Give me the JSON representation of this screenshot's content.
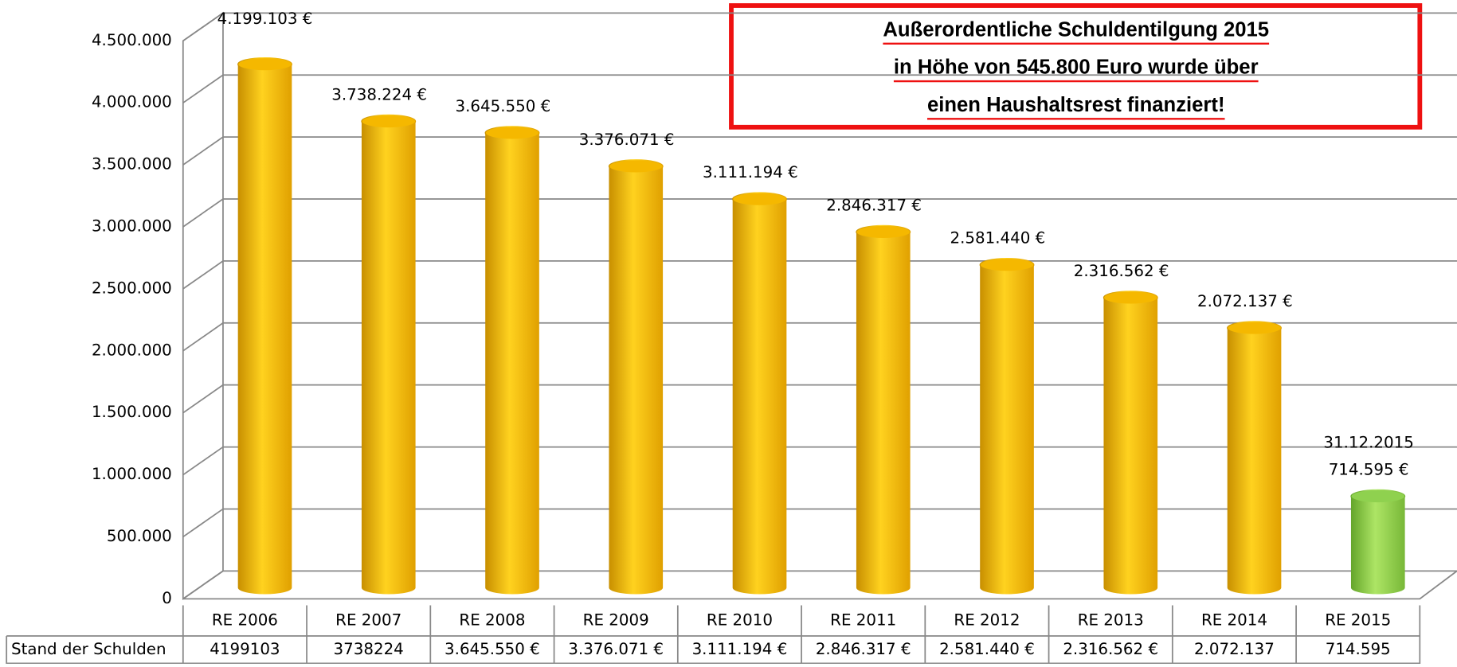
{
  "chart_data": {
    "type": "bar",
    "categories": [
      "RE 2006",
      "RE 2007",
      "RE 2008",
      "RE 2009",
      "RE 2010",
      "RE 2011",
      "RE 2012",
      "RE 2013",
      "RE 2014",
      "RE 2015"
    ],
    "values": [
      4199103,
      3738224,
      3645550,
      3376071,
      3111194,
      2846317,
      2581440,
      2316562,
      2072137,
      714595
    ],
    "value_labels": [
      "4.199.103 €",
      "3.738.224 €",
      "3.645.550 €",
      "3.376.071 €",
      "3.111.194 €",
      "2.846.317 €",
      "2.581.440 €",
      "2.316.562 €",
      "2.072.137 €",
      "714.595 €"
    ],
    "colors": [
      "#f5b800",
      "#f5b800",
      "#f5b800",
      "#f5b800",
      "#f5b800",
      "#f5b800",
      "#f5b800",
      "#f5b800",
      "#f5b800",
      "#8fd14f"
    ],
    "ylim": [
      0,
      4500000
    ],
    "yticks": [
      0,
      {
        "value": 500000,
        "label": "500.000"
      },
      {
        "value": 1000000,
        "label": "1.000.000"
      },
      {
        "value": 1500000,
        "label": "1.500.000"
      },
      {
        "value": 2000000,
        "label": "2.000.000"
      },
      {
        "value": 2500000,
        "label": "2.500.000"
      },
      {
        "value": 3000000,
        "label": "3.000.000"
      },
      {
        "value": 3500000,
        "label": "3.500.000"
      },
      {
        "value": 4000000,
        "label": "4.000.000"
      },
      {
        "value": 4500000,
        "label": "4.500.000"
      }
    ],
    "grid": true,
    "date_label": "31.12.2015",
    "callout": [
      "Außerordentliche Schuldentilgung 2015",
      "in Höhe von 545.800 Euro wurde über",
      "einen Haushaltsrest finanziert!"
    ],
    "data_table": {
      "row_label": "Stand der Schulden",
      "cells": [
        "4199103",
        "3738224",
        "3.645.550 €",
        "3.376.071 €",
        "3.111.194 €",
        "2.846.317 €",
        "2.581.440 €",
        "2.316.562 €",
        "2.072.137",
        "714.595"
      ]
    }
  }
}
